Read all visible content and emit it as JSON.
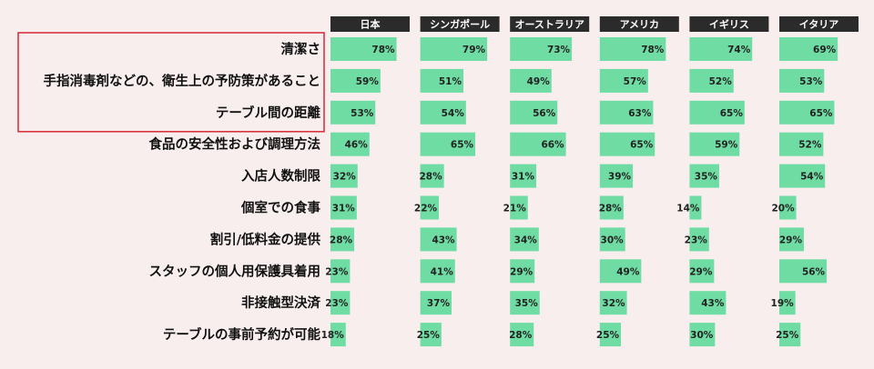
{
  "chart_data": {
    "type": "bar",
    "title": "",
    "colors": {
      "bar": "#6fdca3",
      "header_bg": "#2b2b2b",
      "header_text": "#ffffff",
      "highlight_box": "#d9343f",
      "background": "#f8eeee"
    },
    "highlighted_categories": [
      "清潔さ",
      "手指消毒剤などの、衛生上の予防策があること",
      "テーブル間の距離"
    ],
    "categories": [
      "清潔さ",
      "手指消毒剤などの、衛生上の予防策があること",
      "テーブル間の距離",
      "食品の安全性および調理方法",
      "入店人数制限",
      "個室での食事",
      "割引/低料金の提供",
      "スタッフの個人用保護具着用",
      "非接触型決済",
      "テーブルの事前予約が可能"
    ],
    "series": [
      {
        "name": "日本",
        "values": [
          78,
          59,
          53,
          46,
          32,
          31,
          28,
          23,
          23,
          18
        ]
      },
      {
        "name": "シンガポール",
        "values": [
          79,
          51,
          54,
          65,
          28,
          22,
          43,
          41,
          37,
          25
        ]
      },
      {
        "name": "オーストラリア",
        "values": [
          73,
          49,
          56,
          66,
          31,
          21,
          34,
          29,
          35,
          28
        ]
      },
      {
        "name": "アメリカ",
        "values": [
          78,
          57,
          63,
          65,
          39,
          28,
          30,
          49,
          32,
          25
        ]
      },
      {
        "name": "イギリス",
        "values": [
          74,
          52,
          65,
          59,
          35,
          14,
          23,
          29,
          43,
          30
        ]
      },
      {
        "name": "イタリア",
        "values": [
          69,
          53,
          65,
          52,
          54,
          20,
          29,
          56,
          19,
          25
        ]
      }
    ],
    "value_suffix": "%"
  }
}
